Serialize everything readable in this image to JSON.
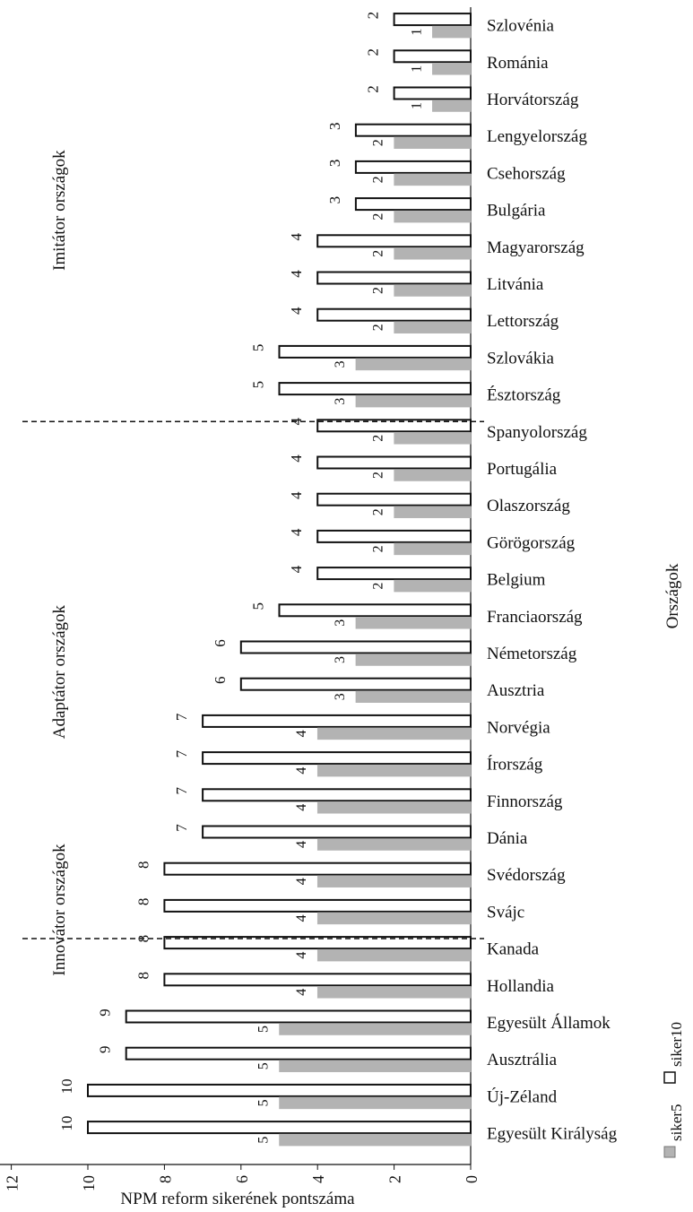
{
  "chart_data": {
    "type": "bar",
    "orientation": "horizontal",
    "categories": [
      "Szlovénia",
      "Románia",
      "Horvátország",
      "Lengyelország",
      "Csehország",
      "Bulgária",
      "Magyarország",
      "Litvánia",
      "Lettország",
      "Szlovákia",
      "Észtország",
      "Spanyolország",
      "Portugália",
      "Olaszország",
      "Görögország",
      "Belgium",
      "Franciaország",
      "Németország",
      "Ausztria",
      "Norvégia",
      "Írország",
      "Finnország",
      "Dánia",
      "Svédország",
      "Svájc",
      "Kanada",
      "Hollandia",
      "Egyesült Államok",
      "Ausztrália",
      "Új-Zéland",
      "Egyesült Királyság"
    ],
    "series": [
      {
        "name": "siker5",
        "color": "#b3b3b3",
        "values": [
          1,
          1,
          1,
          2,
          2,
          2,
          2,
          2,
          2,
          3,
          3,
          2,
          2,
          2,
          2,
          2,
          3,
          3,
          3,
          4,
          4,
          4,
          4,
          4,
          4,
          4,
          4,
          5,
          5,
          5,
          5
        ]
      },
      {
        "name": "siker10",
        "color": "#ffffff",
        "values": [
          2,
          2,
          2,
          3,
          3,
          3,
          4,
          4,
          4,
          5,
          5,
          4,
          4,
          4,
          4,
          4,
          5,
          6,
          6,
          7,
          7,
          7,
          7,
          8,
          8,
          8,
          8,
          9,
          9,
          10,
          10
        ]
      }
    ],
    "xlabel": "NPM reform sikerének pontszáma",
    "ylabel": "Országok",
    "xlim": [
      0,
      12
    ],
    "xticks": [
      "0",
      "2",
      "4",
      "6",
      "8",
      "10",
      "12"
    ],
    "data_labels": true,
    "legend": {
      "position": "bottom-right",
      "entries": [
        "siker5",
        "siker10"
      ]
    },
    "groups": [
      {
        "label": "Imitátor országok",
        "from": "Szlovénia",
        "to": "Észtország"
      },
      {
        "label": "Adaptátor országok",
        "from": "Spanyolország",
        "to": "Svájc"
      },
      {
        "label": "Innovátor országok",
        "from": "Kanada",
        "to": "Egyesült Királyság"
      }
    ],
    "group_dividers": [
      "Spanyolország",
      "Kanada"
    ],
    "grid": false
  }
}
